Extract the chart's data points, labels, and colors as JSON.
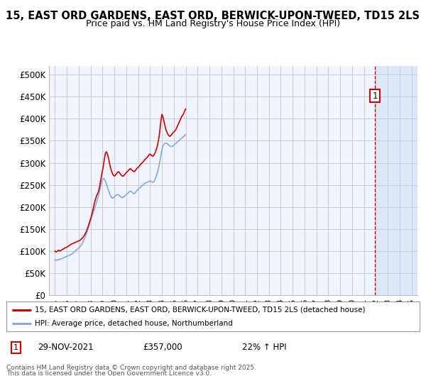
{
  "title1": "15, EAST ORD GARDENS, EAST ORD, BERWICK-UPON-TWEED, TD15 2LS",
  "title2": "Price paid vs. HM Land Registry's House Price Index (HPI)",
  "legend_red": "15, EAST ORD GARDENS, EAST ORD, BERWICK-UPON-TWEED, TD15 2LS (detached house)",
  "legend_blue": "HPI: Average price, detached house, Northumberland",
  "footnote_line1": "Contains HM Land Registry data © Crown copyright and database right 2025.",
  "footnote_line2": "This data is licensed under the Open Government Licence v3.0.",
  "annotation_label": "1",
  "annotation_date": "29-NOV-2021",
  "annotation_price": "£357,000",
  "annotation_hpi": "22% ↑ HPI",
  "red_color": "#cc0000",
  "blue_color": "#88aadd",
  "vline_color": "#cc0000",
  "grid_color": "#cccccc",
  "bg_color": "#ffffff",
  "plot_bg_color": "#f0f4ff",
  "shade_color": "#dce8f8",
  "ylim_min": 0,
  "ylim_max": 520000,
  "yticks": [
    0,
    50000,
    100000,
    150000,
    200000,
    250000,
    300000,
    350000,
    400000,
    450000,
    500000
  ],
  "ytick_labels": [
    "£0",
    "£50K",
    "£100K",
    "£150K",
    "£200K",
    "£250K",
    "£300K",
    "£350K",
    "£400K",
    "£450K",
    "£500K"
  ],
  "xlim_min": 1994.5,
  "xlim_max": 2025.5,
  "vline_x": 2021.917,
  "marker1_y": 452000,
  "xstart": 1995,
  "xend": 2025,
  "red_data": [
    100000,
    98000,
    99000,
    101000,
    102000,
    100000,
    101000,
    103000,
    104000,
    105000,
    107000,
    108000,
    109000,
    110000,
    112000,
    113000,
    115000,
    116000,
    117000,
    118000,
    119000,
    120000,
    121000,
    122000,
    123000,
    124000,
    126000,
    128000,
    130000,
    133000,
    137000,
    141000,
    146000,
    152000,
    159000,
    166000,
    173000,
    181000,
    190000,
    200000,
    210000,
    218000,
    225000,
    230000,
    235000,
    245000,
    258000,
    270000,
    282000,
    295000,
    310000,
    322000,
    325000,
    320000,
    312000,
    300000,
    290000,
    282000,
    276000,
    272000,
    270000,
    272000,
    275000,
    278000,
    280000,
    278000,
    275000,
    272000,
    270000,
    270000,
    272000,
    275000,
    278000,
    280000,
    282000,
    285000,
    287000,
    285000,
    283000,
    281000,
    280000,
    282000,
    285000,
    288000,
    290000,
    292000,
    295000,
    298000,
    300000,
    302000,
    305000,
    308000,
    310000,
    312000,
    315000,
    318000,
    320000,
    318000,
    316000,
    315000,
    318000,
    322000,
    328000,
    335000,
    345000,
    357000,
    375000,
    395000,
    410000,
    405000,
    395000,
    385000,
    375000,
    370000,
    365000,
    362000,
    360000,
    362000,
    365000,
    368000,
    370000,
    372000,
    375000,
    380000,
    385000,
    390000,
    395000,
    400000,
    405000,
    408000,
    412000,
    418000,
    422000
  ],
  "blue_data": [
    80000,
    79000,
    79500,
    80000,
    80500,
    81000,
    82000,
    83000,
    84000,
    85000,
    86000,
    87000,
    88000,
    89000,
    90000,
    91000,
    92000,
    93000,
    95000,
    97000,
    99000,
    101000,
    103000,
    105000,
    107000,
    109000,
    112000,
    115000,
    119000,
    124000,
    129000,
    135000,
    141000,
    148000,
    155000,
    162000,
    169000,
    176000,
    183000,
    190000,
    197000,
    203000,
    210000,
    218000,
    226000,
    235000,
    245000,
    255000,
    262000,
    265000,
    263000,
    258000,
    252000,
    245000,
    238000,
    232000,
    226000,
    222000,
    220000,
    221000,
    223000,
    225000,
    227000,
    228000,
    228000,
    226000,
    224000,
    222000,
    221000,
    222000,
    224000,
    226000,
    228000,
    230000,
    232000,
    234000,
    236000,
    235000,
    233000,
    231000,
    230000,
    232000,
    235000,
    238000,
    240000,
    242000,
    244000,
    246000,
    248000,
    250000,
    252000,
    254000,
    255000,
    256000,
    257000,
    258000,
    259000,
    258000,
    257000,
    256000,
    258000,
    262000,
    268000,
    275000,
    283000,
    292000,
    305000,
    318000,
    330000,
    338000,
    342000,
    344000,
    345000,
    344000,
    342000,
    340000,
    338000,
    337000,
    337000,
    338000,
    340000,
    342000,
    344000,
    346000,
    348000,
    350000,
    352000,
    354000,
    356000,
    358000,
    360000,
    362000,
    364000
  ]
}
